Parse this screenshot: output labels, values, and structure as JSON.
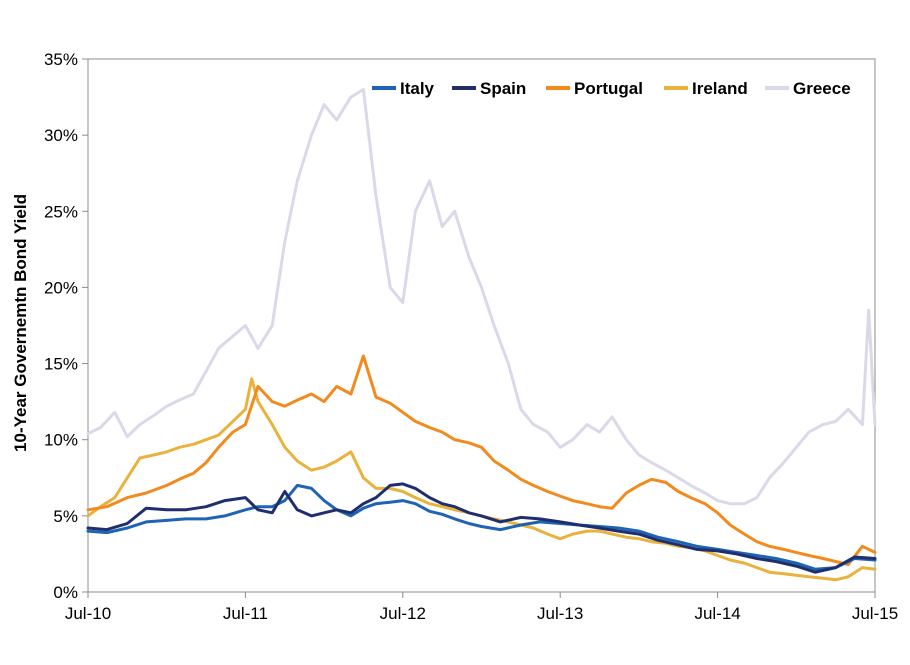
{
  "chart_data": {
    "type": "line",
    "title": "",
    "xlabel": "",
    "ylabel": "10-Year Governemtn Bond Yield",
    "x_tick_labels": [
      "Jul-10",
      "Jul-11",
      "Jul-12",
      "Jul-13",
      "Jul-14",
      "Jul-15"
    ],
    "y_tick_labels": [
      "0%",
      "5%",
      "10%",
      "15%",
      "20%",
      "25%",
      "30%",
      "35%"
    ],
    "xlim": [
      2010.5,
      2015.5
    ],
    "ylim": [
      0,
      35
    ],
    "grid": false,
    "legend_position": "top-right",
    "series": [
      {
        "name": "Italy",
        "color": "#1f63b4",
        "x": [
          2010.5,
          2010.62,
          2010.75,
          2010.87,
          2011.0,
          2011.12,
          2011.25,
          2011.37,
          2011.5,
          2011.58,
          2011.67,
          2011.75,
          2011.83,
          2011.92,
          2012.0,
          2012.08,
          2012.17,
          2012.25,
          2012.33,
          2012.42,
          2012.5,
          2012.58,
          2012.67,
          2012.75,
          2012.83,
          2012.92,
          2013.0,
          2013.12,
          2013.25,
          2013.37,
          2013.5,
          2013.62,
          2013.75,
          2013.87,
          2014.0,
          2014.12,
          2014.25,
          2014.37,
          2014.5,
          2014.62,
          2014.75,
          2014.87,
          2015.0,
          2015.12,
          2015.25,
          2015.37,
          2015.5
        ],
        "values": [
          4.0,
          3.9,
          4.2,
          4.6,
          4.7,
          4.8,
          4.8,
          5.0,
          5.4,
          5.6,
          5.6,
          6.0,
          7.0,
          6.8,
          6.0,
          5.4,
          5.0,
          5.5,
          5.8,
          5.9,
          6.0,
          5.8,
          5.3,
          5.1,
          4.8,
          4.5,
          4.3,
          4.1,
          4.4,
          4.6,
          4.5,
          4.4,
          4.3,
          4.2,
          4.0,
          3.6,
          3.3,
          3.0,
          2.8,
          2.6,
          2.4,
          2.2,
          1.9,
          1.5,
          1.6,
          2.2,
          2.1
        ]
      },
      {
        "name": "Spain",
        "color": "#1f2f6e",
        "x": [
          2010.5,
          2010.62,
          2010.75,
          2010.87,
          2011.0,
          2011.12,
          2011.25,
          2011.37,
          2011.5,
          2011.58,
          2011.67,
          2011.75,
          2011.83,
          2011.92,
          2012.0,
          2012.08,
          2012.17,
          2012.25,
          2012.33,
          2012.42,
          2012.5,
          2012.58,
          2012.67,
          2012.75,
          2012.83,
          2012.92,
          2013.0,
          2013.12,
          2013.25,
          2013.37,
          2013.5,
          2013.62,
          2013.75,
          2013.87,
          2014.0,
          2014.12,
          2014.25,
          2014.37,
          2014.5,
          2014.62,
          2014.75,
          2014.87,
          2015.0,
          2015.12,
          2015.25,
          2015.37,
          2015.5
        ],
        "values": [
          4.2,
          4.1,
          4.5,
          5.5,
          5.4,
          5.4,
          5.6,
          6.0,
          6.2,
          5.4,
          5.2,
          6.6,
          5.4,
          5.0,
          5.2,
          5.4,
          5.2,
          5.8,
          6.2,
          7.0,
          7.1,
          6.8,
          6.2,
          5.8,
          5.6,
          5.2,
          5.0,
          4.6,
          4.9,
          4.8,
          4.6,
          4.4,
          4.2,
          4.0,
          3.8,
          3.4,
          3.1,
          2.8,
          2.7,
          2.5,
          2.2,
          2.0,
          1.7,
          1.3,
          1.6,
          2.3,
          2.2
        ]
      },
      {
        "name": "Portugal",
        "color": "#f28a1e",
        "x": [
          2010.5,
          2010.62,
          2010.75,
          2010.87,
          2011.0,
          2011.08,
          2011.17,
          2011.25,
          2011.33,
          2011.42,
          2011.5,
          2011.58,
          2011.67,
          2011.75,
          2011.83,
          2011.92,
          2012.0,
          2012.08,
          2012.17,
          2012.25,
          2012.33,
          2012.42,
          2012.5,
          2012.58,
          2012.67,
          2012.75,
          2012.83,
          2012.92,
          2013.0,
          2013.08,
          2013.17,
          2013.25,
          2013.33,
          2013.42,
          2013.5,
          2013.58,
          2013.67,
          2013.75,
          2013.83,
          2013.92,
          2014.0,
          2014.08,
          2014.17,
          2014.25,
          2014.33,
          2014.42,
          2014.5,
          2014.58,
          2014.67,
          2014.75,
          2014.83,
          2014.92,
          2015.0,
          2015.08,
          2015.17,
          2015.25,
          2015.33,
          2015.42,
          2015.5
        ],
        "values": [
          5.4,
          5.6,
          6.2,
          6.5,
          7.0,
          7.4,
          7.8,
          8.5,
          9.5,
          10.5,
          11.0,
          13.5,
          12.5,
          12.2,
          12.6,
          13.0,
          12.5,
          13.5,
          13.0,
          15.5,
          12.8,
          12.4,
          11.8,
          11.2,
          10.8,
          10.5,
          10.0,
          9.8,
          9.5,
          8.6,
          8.0,
          7.4,
          7.0,
          6.6,
          6.3,
          6.0,
          5.8,
          5.6,
          5.5,
          6.5,
          7.0,
          7.4,
          7.2,
          6.6,
          6.2,
          5.8,
          5.2,
          4.4,
          3.8,
          3.3,
          3.0,
          2.8,
          2.6,
          2.4,
          2.2,
          2.0,
          1.8,
          3.0,
          2.6
        ]
      },
      {
        "name": "Ireland",
        "color": "#e9b23c",
        "x": [
          2010.5,
          2010.58,
          2010.67,
          2010.75,
          2010.83,
          2010.92,
          2011.0,
          2011.08,
          2011.17,
          2011.25,
          2011.33,
          2011.42,
          2011.5,
          2011.54,
          2011.58,
          2011.67,
          2011.75,
          2011.83,
          2011.92,
          2012.0,
          2012.08,
          2012.17,
          2012.25,
          2012.33,
          2012.42,
          2012.5,
          2012.58,
          2012.67,
          2012.75,
          2012.83,
          2012.92,
          2013.0,
          2013.08,
          2013.17,
          2013.25,
          2013.33,
          2013.42,
          2013.5,
          2013.58,
          2013.67,
          2013.75,
          2013.83,
          2013.92,
          2014.0,
          2014.08,
          2014.17,
          2014.25,
          2014.33,
          2014.42,
          2014.5,
          2014.58,
          2014.67,
          2014.75,
          2014.83,
          2014.92,
          2015.0,
          2015.08,
          2015.17,
          2015.25,
          2015.33,
          2015.42,
          2015.5
        ],
        "values": [
          5.0,
          5.6,
          6.2,
          7.5,
          8.8,
          9.0,
          9.2,
          9.5,
          9.7,
          10.0,
          10.3,
          11.2,
          12.0,
          14.0,
          12.5,
          11.0,
          9.5,
          8.6,
          8.0,
          8.2,
          8.6,
          9.2,
          7.5,
          6.8,
          6.8,
          6.6,
          6.2,
          5.8,
          5.6,
          5.4,
          5.2,
          5.0,
          4.8,
          4.6,
          4.4,
          4.2,
          3.8,
          3.5,
          3.8,
          4.0,
          4.0,
          3.8,
          3.6,
          3.5,
          3.3,
          3.2,
          3.0,
          2.9,
          2.7,
          2.4,
          2.1,
          1.9,
          1.6,
          1.3,
          1.2,
          1.1,
          1.0,
          0.9,
          0.8,
          1.0,
          1.6,
          1.5
        ]
      },
      {
        "name": "Greece",
        "color": "#d9d9ea",
        "x": [
          2010.5,
          2010.58,
          2010.67,
          2010.75,
          2010.83,
          2010.92,
          2011.0,
          2011.08,
          2011.17,
          2011.25,
          2011.33,
          2011.42,
          2011.5,
          2011.58,
          2011.67,
          2011.75,
          2011.83,
          2011.92,
          2012.0,
          2012.08,
          2012.17,
          2012.25,
          2012.33,
          2012.42,
          2012.5,
          2012.58,
          2012.67,
          2012.75,
          2012.83,
          2012.92,
          2013.0,
          2013.08,
          2013.17,
          2013.25,
          2013.33,
          2013.42,
          2013.5,
          2013.58,
          2013.67,
          2013.75,
          2013.83,
          2013.92,
          2014.0,
          2014.08,
          2014.17,
          2014.25,
          2014.33,
          2014.42,
          2014.5,
          2014.58,
          2014.67,
          2014.75,
          2014.83,
          2014.92,
          2015.0,
          2015.08,
          2015.17,
          2015.25,
          2015.33,
          2015.42,
          2015.46,
          2015.5
        ],
        "values": [
          10.4,
          10.8,
          11.8,
          10.2,
          11.0,
          11.6,
          12.2,
          12.6,
          13.0,
          14.5,
          16.0,
          16.8,
          17.5,
          16.0,
          17.5,
          23.0,
          27.0,
          30.0,
          32.0,
          31.0,
          32.5,
          33.0,
          26.0,
          20.0,
          19.0,
          25.0,
          27.0,
          24.0,
          25.0,
          22.0,
          20.0,
          17.5,
          15.0,
          12.0,
          11.0,
          10.5,
          9.5,
          10.0,
          11.0,
          10.5,
          11.5,
          10.0,
          9.0,
          8.5,
          8.0,
          7.5,
          7.0,
          6.5,
          6.0,
          5.8,
          5.8,
          6.2,
          7.5,
          8.5,
          9.5,
          10.5,
          11.0,
          11.2,
          12.0,
          11.0,
          18.5,
          11.0
        ]
      }
    ]
  }
}
